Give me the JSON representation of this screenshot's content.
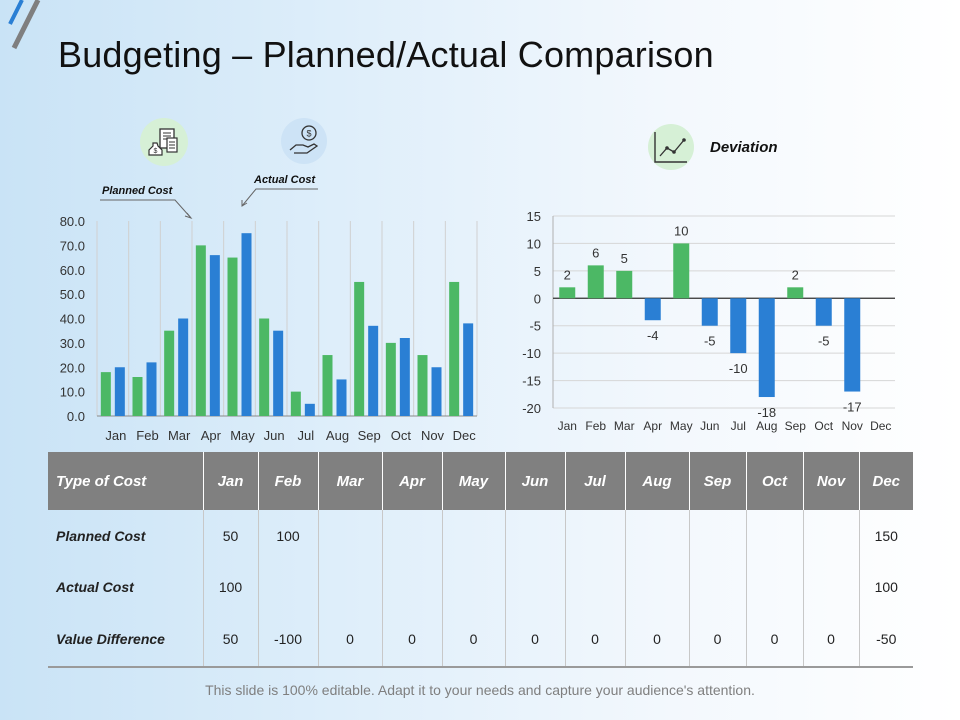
{
  "slide": {
    "title": "Budgeting – Planned/Actual Comparison",
    "footer": "This slide is 100% editable. Adapt it to your needs and capture your audience's attention."
  },
  "icons": {
    "planned": "invoice-money-icon",
    "actual": "hand-coin-icon",
    "deviation": "line-trend-icon"
  },
  "callouts": {
    "planned": "Planned Cost",
    "actual": "Actual Cost",
    "deviation": "Deviation"
  },
  "colors": {
    "planned": "#4cb865",
    "actual": "#2a7fd4",
    "header_bg": "#808080",
    "icon_bg_green": "#d6f0d6",
    "icon_bg_blue": "#cde3f6"
  },
  "chart_data": [
    {
      "type": "bar",
      "title": "",
      "categories": [
        "Jan",
        "Feb",
        "Mar",
        "Apr",
        "May",
        "Jun",
        "Jul",
        "Aug",
        "Sep",
        "Oct",
        "Nov",
        "Dec"
      ],
      "series": [
        {
          "name": "Planned Cost",
          "values": [
            18,
            16,
            35,
            70,
            65,
            40,
            10,
            25,
            55,
            30,
            25,
            55
          ]
        },
        {
          "name": "Actual Cost",
          "values": [
            20,
            22,
            40,
            66,
            75,
            35,
            5,
            15,
            37,
            32,
            20,
            38
          ]
        }
      ],
      "ylim": [
        0,
        80
      ],
      "yticks": [
        "0.0",
        "10.0",
        "20.0",
        "30.0",
        "40.0",
        "50.0",
        "60.0",
        "70.0",
        "80.0"
      ],
      "xlabel": "",
      "ylabel": "",
      "grid": true
    },
    {
      "type": "bar",
      "title": "Deviation",
      "categories": [
        "Jan",
        "Feb",
        "Mar",
        "Apr",
        "May",
        "Jun",
        "Jul",
        "Aug",
        "Sep",
        "Oct",
        "Nov",
        "Dec"
      ],
      "values": [
        2,
        6,
        5,
        -4,
        10,
        -5,
        -10,
        -18,
        2,
        -5,
        -17,
        null
      ],
      "labels": [
        "2",
        "6",
        "5",
        "-4",
        "10",
        "-5",
        "-10",
        "-18",
        "2",
        "-5",
        "-17",
        ""
      ],
      "ylim": [
        -20,
        15
      ],
      "yticks": [
        "-20",
        "-15",
        "-10",
        "-5",
        "0",
        "5",
        "10",
        "15"
      ],
      "xlabel": "",
      "ylabel": "",
      "grid": true
    }
  ],
  "table": {
    "headers": [
      "Type of Cost",
      "Jan",
      "Feb",
      "Mar",
      "Apr",
      "May",
      "Jun",
      "Jul",
      "Aug",
      "Sep",
      "Oct",
      "Nov",
      "Dec"
    ],
    "rows": [
      [
        "Planned Cost",
        "50",
        "100",
        "",
        "",
        "",
        "",
        "",
        "",
        "",
        "",
        "",
        "150"
      ],
      [
        "Actual Cost",
        "100",
        "",
        "",
        "",
        "",
        "",
        "",
        "",
        "",
        "",
        "",
        "100"
      ],
      [
        "Value Difference",
        "50",
        "-100",
        "0",
        "0",
        "0",
        "0",
        "0",
        "0",
        "0",
        "0",
        "0",
        "-50"
      ]
    ]
  }
}
